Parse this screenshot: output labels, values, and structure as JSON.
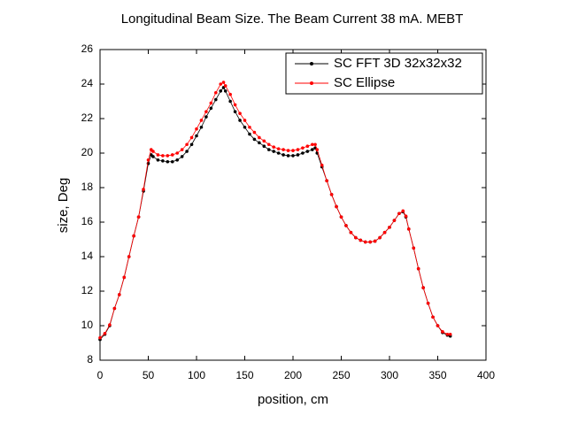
{
  "chart_data": {
    "type": "line",
    "title": "Longitudinal Beam Size. The Beam Current 38 mA. MEBT",
    "x_label": "position, cm",
    "y_label": "size, Deg",
    "x": [
      0,
      5,
      10,
      15,
      20,
      25,
      30,
      35,
      40,
      45,
      50,
      53,
      55,
      60,
      65,
      70,
      75,
      80,
      85,
      90,
      95,
      100,
      105,
      110,
      115,
      120,
      125,
      128,
      130,
      135,
      140,
      145,
      150,
      155,
      160,
      165,
      170,
      175,
      180,
      185,
      190,
      195,
      200,
      205,
      210,
      215,
      220,
      223,
      225,
      230,
      235,
      240,
      245,
      250,
      255,
      260,
      265,
      270,
      275,
      280,
      285,
      290,
      295,
      300,
      305,
      310,
      314,
      317,
      320,
      325,
      330,
      335,
      340,
      345,
      350,
      355,
      360,
      363
    ],
    "series": [
      {
        "name": "SC FFT 3D 32x32x32",
        "color": "#000000",
        "values": [
          9.2,
          9.5,
          10.0,
          11.0,
          11.8,
          12.8,
          14.0,
          15.2,
          16.3,
          17.8,
          19.4,
          19.9,
          19.8,
          19.6,
          19.55,
          19.5,
          19.5,
          19.6,
          19.8,
          20.1,
          20.5,
          21.0,
          21.5,
          22.1,
          22.6,
          23.1,
          23.6,
          23.8,
          23.6,
          23.0,
          22.4,
          21.9,
          21.5,
          21.1,
          20.8,
          20.6,
          20.4,
          20.2,
          20.1,
          20.0,
          19.9,
          19.85,
          19.85,
          19.9,
          20.0,
          20.1,
          20.2,
          20.3,
          20.0,
          19.2,
          18.4,
          17.6,
          16.9,
          16.3,
          15.8,
          15.4,
          15.1,
          14.95,
          14.85,
          14.85,
          14.9,
          15.1,
          15.4,
          15.7,
          16.1,
          16.5,
          16.6,
          16.3,
          15.6,
          14.5,
          13.3,
          12.2,
          11.3,
          10.5,
          10.0,
          9.6,
          9.45,
          9.4
        ]
      },
      {
        "name": "SC Ellipse",
        "color": "#ff0000",
        "values": [
          9.3,
          9.55,
          10.05,
          11.0,
          11.8,
          12.8,
          14.0,
          15.2,
          16.3,
          17.9,
          19.6,
          20.2,
          20.1,
          19.9,
          19.85,
          19.85,
          19.9,
          20.0,
          20.2,
          20.5,
          20.9,
          21.4,
          21.9,
          22.4,
          22.9,
          23.5,
          24.0,
          24.1,
          23.9,
          23.4,
          22.8,
          22.3,
          21.9,
          21.5,
          21.2,
          20.9,
          20.7,
          20.5,
          20.35,
          20.25,
          20.2,
          20.15,
          20.15,
          20.2,
          20.3,
          20.4,
          20.5,
          20.5,
          20.2,
          19.3,
          18.4,
          17.6,
          16.9,
          16.3,
          15.8,
          15.4,
          15.1,
          14.95,
          14.85,
          14.85,
          14.9,
          15.1,
          15.4,
          15.7,
          16.1,
          16.5,
          16.65,
          16.35,
          15.6,
          14.5,
          13.3,
          12.2,
          11.3,
          10.5,
          10.0,
          9.65,
          9.5,
          9.5
        ]
      }
    ],
    "xlim": [
      0,
      400
    ],
    "xticks": [
      0,
      50,
      100,
      150,
      200,
      250,
      300,
      350,
      400
    ],
    "ylim": [
      8,
      26
    ],
    "yticks": [
      8,
      10,
      12,
      14,
      16,
      18,
      20,
      22,
      24,
      26
    ],
    "legend": "upper right"
  }
}
